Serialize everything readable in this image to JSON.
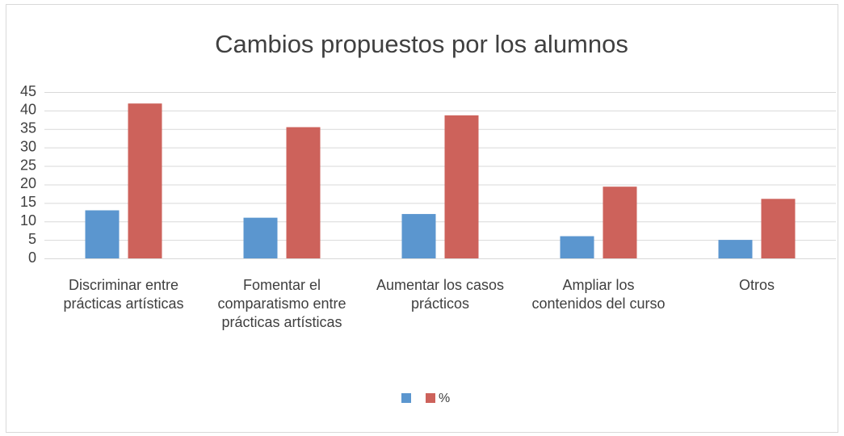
{
  "chart_data": {
    "type": "bar",
    "title": "Cambios propuestos por los alumnos",
    "categories": [
      "Discriminar entre prácticas artísticas",
      "Fomentar el comparatismo entre prácticas artísticas",
      "Aumentar los casos prácticos",
      "Ampliar los contenidos del curso",
      "Otros"
    ],
    "series": [
      {
        "color": "#5b96cf",
        "values": [
          13,
          11,
          12,
          6,
          5
        ]
      },
      {
        "name": "%",
        "color": "#cd625b",
        "values": [
          41.9,
          35.5,
          38.7,
          19.4,
          16.1
        ]
      }
    ],
    "ylim": [
      0,
      45
    ],
    "yticks": [
      0,
      5,
      10,
      15,
      20,
      25,
      30,
      35,
      40,
      45
    ],
    "grid": true,
    "legend": "bottom"
  }
}
